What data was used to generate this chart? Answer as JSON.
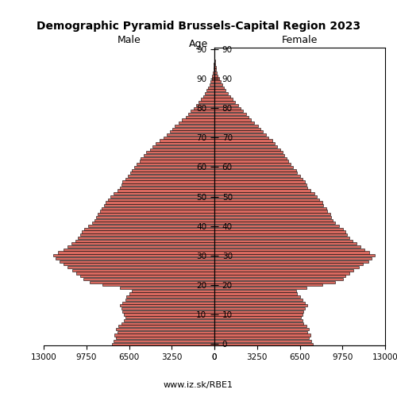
{
  "title": "Demographic Pyramid Brussels-Capital Region 2023",
  "male_label": "Male",
  "female_label": "Female",
  "age_label": "Age",
  "source": "www.iz.sk/RBE1",
  "xlim": 13000,
  "xticks": [
    13000,
    9750,
    6500,
    3250,
    0
  ],
  "bar_color": "#d9695f",
  "bar_edge_color": "#000000",
  "bar_linewidth": 0.4,
  "ages": [
    0,
    1,
    2,
    3,
    4,
    5,
    6,
    7,
    8,
    9,
    10,
    11,
    12,
    13,
    14,
    15,
    16,
    17,
    18,
    19,
    20,
    21,
    22,
    23,
    24,
    25,
    26,
    27,
    28,
    29,
    30,
    31,
    32,
    33,
    34,
    35,
    36,
    37,
    38,
    39,
    40,
    41,
    42,
    43,
    44,
    45,
    46,
    47,
    48,
    49,
    50,
    51,
    52,
    53,
    54,
    55,
    56,
    57,
    58,
    59,
    60,
    61,
    62,
    63,
    64,
    65,
    66,
    67,
    68,
    69,
    70,
    71,
    72,
    73,
    74,
    75,
    76,
    77,
    78,
    79,
    80,
    81,
    82,
    83,
    84,
    85,
    86,
    87,
    88,
    89,
    90,
    91,
    92,
    93,
    94,
    95,
    96,
    97,
    98,
    99,
    100
  ],
  "male": [
    7800,
    7700,
    7500,
    7600,
    7400,
    7500,
    7300,
    7100,
    6900,
    6800,
    6900,
    7000,
    7100,
    7200,
    7000,
    6800,
    6700,
    6500,
    6300,
    7200,
    8500,
    9500,
    10000,
    10200,
    10500,
    10800,
    11200,
    11500,
    11800,
    12100,
    12300,
    11900,
    11500,
    11200,
    10900,
    10600,
    10400,
    10200,
    10100,
    9900,
    9600,
    9300,
    9100,
    9000,
    8900,
    8700,
    8600,
    8400,
    8300,
    8100,
    7900,
    7700,
    7400,
    7200,
    7100,
    7000,
    6800,
    6600,
    6400,
    6300,
    6100,
    5900,
    5700,
    5600,
    5400,
    5200,
    4900,
    4700,
    4500,
    4200,
    3900,
    3600,
    3400,
    3200,
    3000,
    2700,
    2500,
    2200,
    2000,
    1800,
    1600,
    1400,
    1200,
    1000,
    850,
    700,
    580,
    480,
    380,
    290,
    210,
    160,
    110,
    80,
    55,
    35,
    22,
    13,
    7,
    4,
    2
  ],
  "female": [
    7500,
    7400,
    7200,
    7300,
    7100,
    7200,
    7000,
    6800,
    6700,
    6600,
    6700,
    6800,
    6900,
    7100,
    6900,
    6700,
    6500,
    6300,
    6200,
    7000,
    8200,
    9200,
    9800,
    10000,
    10300,
    10600,
    11000,
    11300,
    11700,
    12000,
    12200,
    11800,
    11400,
    11100,
    10800,
    10500,
    10300,
    10100,
    10000,
    9800,
    9500,
    9200,
    9000,
    8900,
    8800,
    8600,
    8500,
    8300,
    8200,
    8000,
    7800,
    7600,
    7300,
    7100,
    7000,
    6900,
    6700,
    6500,
    6300,
    6200,
    6000,
    5800,
    5600,
    5500,
    5300,
    5200,
    5000,
    4800,
    4600,
    4400,
    4100,
    3900,
    3700,
    3500,
    3300,
    3000,
    2800,
    2600,
    2400,
    2200,
    2000,
    1800,
    1600,
    1400,
    1200,
    1000,
    850,
    700,
    580,
    460,
    350,
    270,
    200,
    140,
    95,
    62,
    38,
    22,
    12,
    6,
    3
  ]
}
